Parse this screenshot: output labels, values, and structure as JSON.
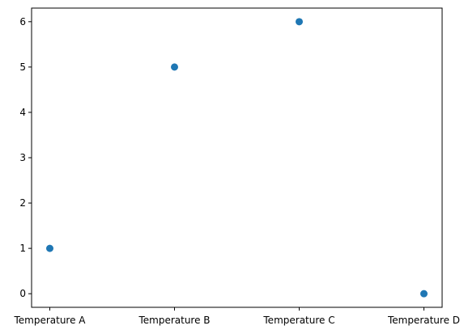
{
  "chart_data": {
    "type": "scatter",
    "title": "",
    "xlabel": "",
    "ylabel": "",
    "categories": [
      "Temperature A",
      "Temperature B",
      "Temperature C",
      "Temperature D"
    ],
    "series": [
      {
        "values": [
          1,
          5,
          6,
          0
        ],
        "color": "#1f77b4"
      }
    ],
    "ylim": [
      -0.3,
      6.3
    ],
    "yticks": [
      0,
      1,
      2,
      3,
      4,
      5,
      6
    ],
    "grid": false,
    "legend": "none"
  }
}
